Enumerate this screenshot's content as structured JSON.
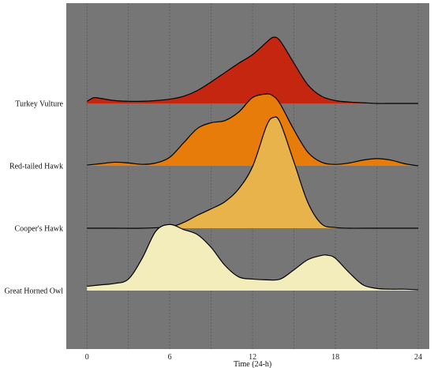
{
  "chart_data": {
    "type": "ridgeline",
    "title": "",
    "xlabel": "Time (24-h)",
    "ylabel": "",
    "xlim": [
      -1.5,
      24.8
    ],
    "x_ticks": [
      0,
      6,
      12,
      18,
      24
    ],
    "x_minor_gridlines": [
      3,
      9,
      15,
      21
    ],
    "grid": true,
    "background_color": "#767676",
    "gridline_color": "#5a5a5a",
    "series": [
      {
        "name": "Turkey Vulture",
        "color": "#c5260f",
        "x": [
          0,
          0.5,
          1,
          2,
          3,
          4,
          5,
          6,
          7,
          8,
          9,
          10,
          11,
          12,
          13,
          13.5,
          14,
          15,
          16,
          17,
          18,
          19,
          20,
          21,
          22,
          23,
          24
        ],
        "y": [
          0.03,
          0.08,
          0.07,
          0.04,
          0.03,
          0.03,
          0.04,
          0.06,
          0.1,
          0.18,
          0.3,
          0.43,
          0.56,
          0.68,
          0.85,
          0.92,
          0.87,
          0.56,
          0.26,
          0.1,
          0.04,
          0.02,
          0.01,
          0.0,
          0.0,
          0.0,
          0.0
        ]
      },
      {
        "name": "Red-tailed Hawk",
        "color": "#e77c0b",
        "x": [
          0,
          1,
          2,
          3,
          4,
          5,
          6,
          7,
          8,
          9,
          10,
          11,
          12,
          13,
          13.5,
          14,
          15,
          16,
          17,
          18,
          19,
          20,
          21,
          22,
          23,
          24
        ],
        "y": [
          0.01,
          0.03,
          0.05,
          0.04,
          0.02,
          0.04,
          0.12,
          0.32,
          0.52,
          0.6,
          0.63,
          0.75,
          0.95,
          1.0,
          0.97,
          0.86,
          0.5,
          0.19,
          0.05,
          0.02,
          0.04,
          0.08,
          0.1,
          0.08,
          0.03,
          0.0
        ]
      },
      {
        "name": "Cooper's Hawk",
        "color": "#e8b34a",
        "x": [
          0,
          2,
          4,
          6,
          7,
          8,
          9,
          10,
          11,
          12,
          13,
          13.5,
          14,
          15,
          16,
          17,
          18,
          19,
          20,
          22,
          24
        ],
        "y": [
          0.0,
          0.0,
          0.0,
          0.02,
          0.08,
          0.18,
          0.27,
          0.37,
          0.55,
          0.86,
          1.42,
          1.54,
          1.47,
          0.92,
          0.36,
          0.06,
          0.01,
          0.0,
          0.0,
          0.0,
          0.0
        ]
      },
      {
        "name": "Great Horned Owl",
        "color": "#f3edbb",
        "x": [
          0,
          1,
          2,
          3,
          4,
          5,
          6,
          7,
          8,
          9,
          10,
          11,
          12,
          13,
          14,
          15,
          16,
          17,
          17.5,
          18,
          19,
          20,
          21,
          22,
          23,
          24
        ],
        "y": [
          0.06,
          0.08,
          0.1,
          0.16,
          0.45,
          0.83,
          0.92,
          0.85,
          0.78,
          0.6,
          0.35,
          0.19,
          0.16,
          0.15,
          0.16,
          0.29,
          0.43,
          0.49,
          0.49,
          0.45,
          0.25,
          0.08,
          0.03,
          0.02,
          0.02,
          0.01
        ]
      }
    ]
  }
}
